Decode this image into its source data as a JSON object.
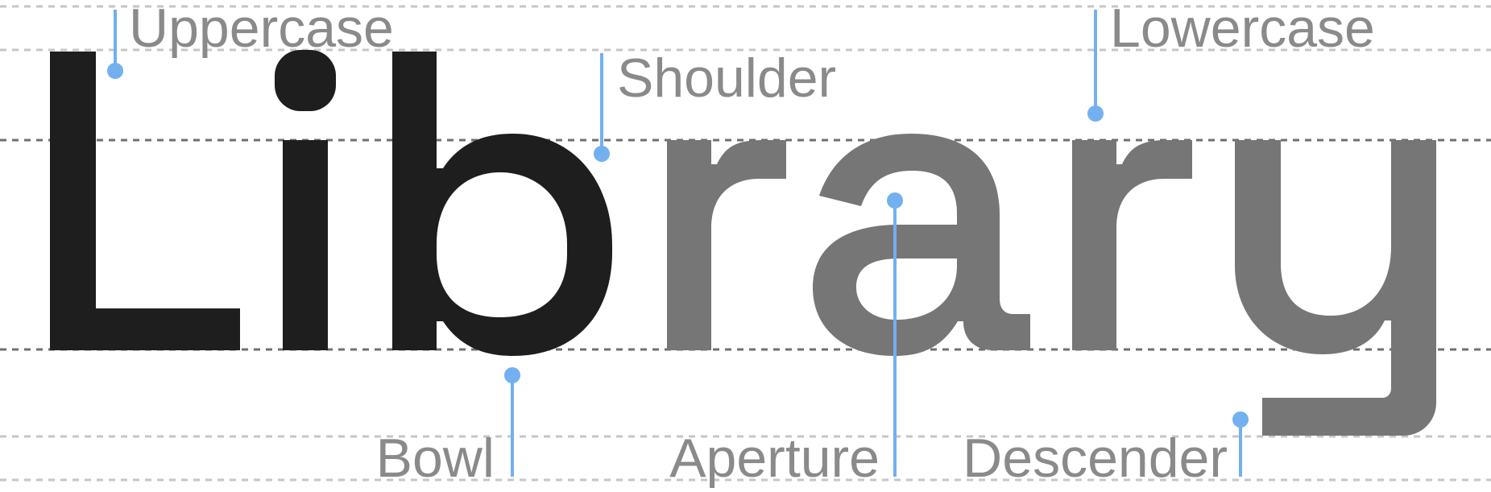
{
  "word": {
    "dark_part": "Lib",
    "light_part": "rary",
    "dark_color": "#1e1e1e",
    "light_color": "#767676"
  },
  "callouts": {
    "uppercase": "Uppercase",
    "shoulder": "Shoulder",
    "lowercase": "Lowercase",
    "bowl": "Bowl",
    "aperture": "Aperture",
    "descender": "Descender"
  },
  "colors": {
    "label": "#8a8a8a",
    "callout": "#72b0f0",
    "guide_light": "#c6c6c6",
    "guide_dark": "#6f6f6f"
  }
}
